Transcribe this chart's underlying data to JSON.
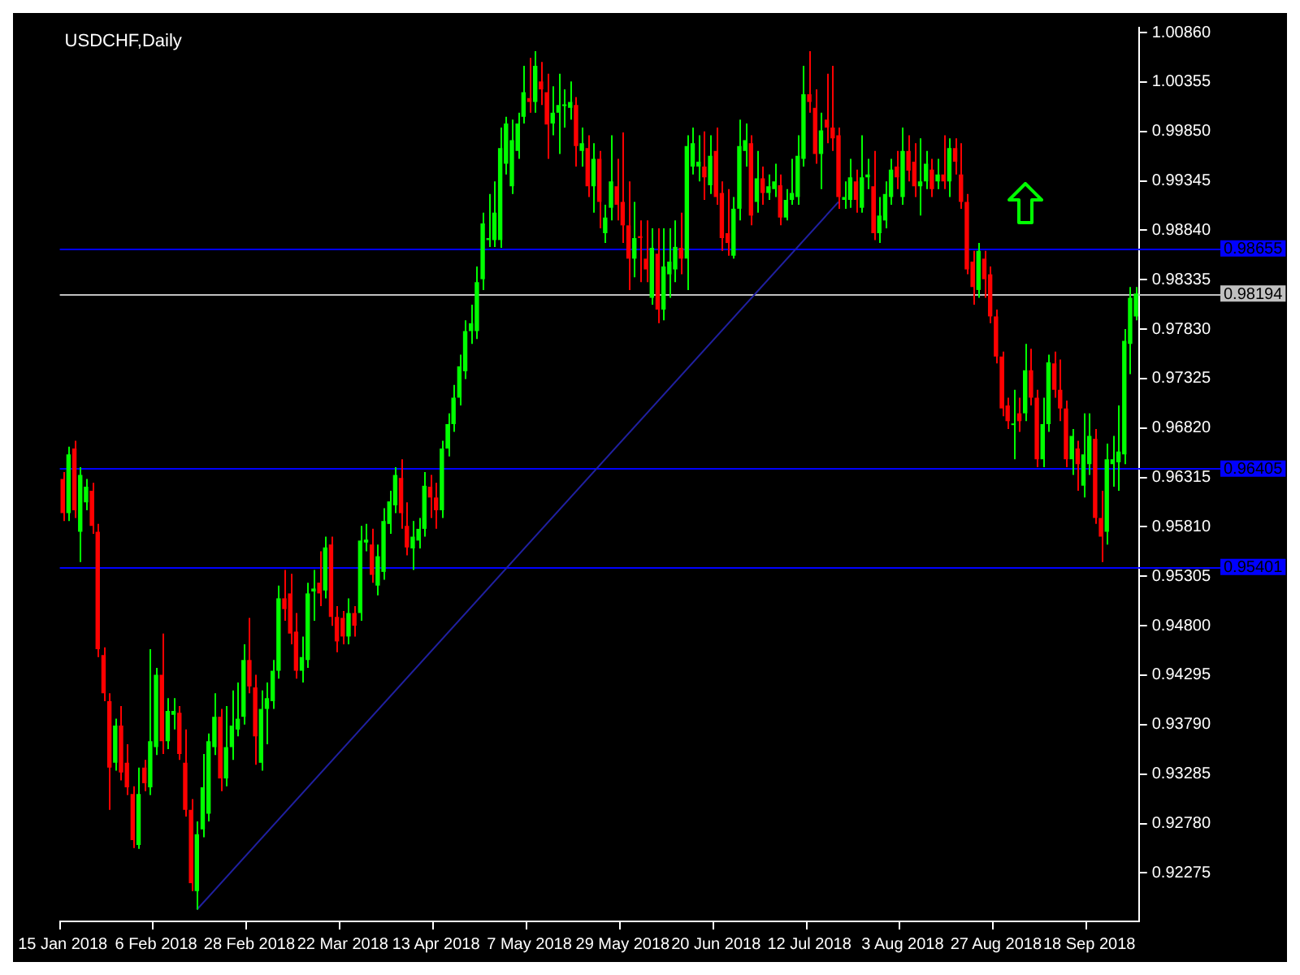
{
  "chart_data": {
    "type": "candlestick",
    "title": "USDCHF,Daily",
    "categories": [
      "15 Jan 2018",
      null,
      null,
      null,
      null,
      null,
      null,
      null,
      null,
      null,
      null,
      null,
      null,
      null,
      null,
      null,
      "6 Feb 2018",
      null,
      null,
      null,
      null,
      null,
      null,
      null,
      null,
      null,
      null,
      null,
      null,
      null,
      null,
      null,
      "28 Feb 2018",
      null,
      null,
      null,
      null,
      null,
      null,
      null,
      null,
      null,
      null,
      null,
      null,
      null,
      null,
      null,
      "22 Mar 2018",
      null,
      null,
      null,
      null,
      null,
      null,
      null,
      null,
      null,
      null,
      null,
      null,
      null,
      null,
      null,
      "13 Apr 2018",
      null,
      null,
      null,
      null,
      null,
      null,
      null,
      null,
      null,
      null,
      null,
      null,
      null,
      null,
      null,
      "7 May 2018",
      null,
      null,
      null,
      null,
      null,
      null,
      null,
      null,
      null,
      null,
      null,
      null,
      null,
      null,
      null,
      "29 May 2018",
      null,
      null,
      null,
      null,
      null,
      null,
      null,
      null,
      null,
      null,
      null,
      null,
      null,
      null,
      null,
      "20 Jun 2018",
      null,
      null,
      null,
      null,
      null,
      null,
      null,
      null,
      null,
      null,
      null,
      null,
      null,
      null,
      null,
      "12 Jul 2018",
      null,
      null,
      null,
      null,
      null,
      null,
      null,
      null,
      null,
      null,
      null,
      null,
      null,
      null,
      null,
      "3 Aug 2018",
      null,
      null,
      null,
      null,
      null,
      null,
      null,
      null,
      null,
      null,
      null,
      null,
      null,
      null,
      null,
      "27 Aug 2018",
      null,
      null,
      null,
      null,
      null,
      null,
      null,
      null,
      null,
      null,
      null,
      null,
      null,
      null,
      null,
      "18 Sep 2018",
      null,
      null,
      null,
      null,
      null,
      null,
      null,
      null
    ],
    "ohlc": [
      [
        0.963,
        0.9637,
        0.9587,
        0.9595
      ],
      [
        0.9595,
        0.9663,
        0.9587,
        0.9655
      ],
      [
        0.9661,
        0.9669,
        0.959,
        0.9598
      ],
      [
        0.9576,
        0.9642,
        0.9545,
        0.9634
      ],
      [
        0.9606,
        0.963,
        0.9598,
        0.9622
      ],
      [
        0.9618,
        0.9626,
        0.9574,
        0.9582
      ],
      [
        0.9576,
        0.9584,
        0.9448,
        0.9456
      ],
      [
        0.945,
        0.9458,
        0.9403,
        0.9411
      ],
      [
        0.9403,
        0.9411,
        0.9292,
        0.9335
      ],
      [
        0.934,
        0.9385,
        0.9332,
        0.9378
      ],
      [
        0.9378,
        0.9398,
        0.9322,
        0.933
      ],
      [
        0.934,
        0.9359,
        0.9307,
        0.9315
      ],
      [
        0.9308,
        0.9316,
        0.9253,
        0.9261
      ],
      [
        0.9256,
        0.9335,
        0.9252,
        0.9308
      ],
      [
        0.9335,
        0.9343,
        0.9311,
        0.9319
      ],
      [
        0.9315,
        0.9456,
        0.9307,
        0.9362
      ],
      [
        0.9356,
        0.9437,
        0.9348,
        0.943
      ],
      [
        0.943,
        0.9472,
        0.9349,
        0.9362
      ],
      [
        0.9362,
        0.9406,
        0.9354,
        0.9393
      ],
      [
        0.9389,
        0.9406,
        0.9374,
        0.9393
      ],
      [
        0.9391,
        0.9398,
        0.9343,
        0.9349
      ],
      [
        0.934,
        0.9374,
        0.9285,
        0.9292
      ],
      [
        0.9292,
        0.9303,
        0.9209,
        0.9217
      ],
      [
        0.9209,
        0.928,
        0.919,
        0.9267
      ],
      [
        0.9272,
        0.9349,
        0.9264,
        0.9315
      ],
      [
        0.9288,
        0.937,
        0.928,
        0.9362
      ],
      [
        0.9356,
        0.9411,
        0.9348,
        0.9387
      ],
      [
        0.9387,
        0.9395,
        0.9311,
        0.9324
      ],
      [
        0.9324,
        0.9398,
        0.9316,
        0.9356
      ],
      [
        0.9356,
        0.9414,
        0.9343,
        0.9378
      ],
      [
        0.9374,
        0.9422,
        0.9367,
        0.9385
      ],
      [
        0.9387,
        0.9461,
        0.9379,
        0.9445
      ],
      [
        0.9445,
        0.9488,
        0.9411,
        0.9418
      ],
      [
        0.9417,
        0.943,
        0.9338,
        0.9367
      ],
      [
        0.934,
        0.9414,
        0.9332,
        0.9395
      ],
      [
        0.9395,
        0.9422,
        0.9359,
        0.9406
      ],
      [
        0.9403,
        0.9445,
        0.9395,
        0.9434
      ],
      [
        0.9434,
        0.9521,
        0.9426,
        0.9508
      ],
      [
        0.9508,
        0.9537,
        0.9485,
        0.9497
      ],
      [
        0.9513,
        0.9533,
        0.9461,
        0.9472
      ],
      [
        0.9474,
        0.9493,
        0.9426,
        0.9434
      ],
      [
        0.9434,
        0.9469,
        0.9422,
        0.9448
      ],
      [
        0.9445,
        0.9524,
        0.9437,
        0.9513
      ],
      [
        0.9515,
        0.9537,
        0.9485,
        0.9518
      ],
      [
        0.9524,
        0.9556,
        0.95,
        0.9513
      ],
      [
        0.9516,
        0.9571,
        0.9508,
        0.956
      ],
      [
        0.9563,
        0.9571,
        0.948,
        0.9489
      ],
      [
        0.9489,
        0.95,
        0.9453,
        0.9464
      ],
      [
        0.9488,
        0.9495,
        0.9461,
        0.9469
      ],
      [
        0.9469,
        0.9508,
        0.9461,
        0.9493
      ],
      [
        0.9493,
        0.95,
        0.9469,
        0.948
      ],
      [
        0.9493,
        0.9582,
        0.9485,
        0.9567
      ],
      [
        0.9565,
        0.9584,
        0.9556,
        0.9568
      ],
      [
        0.9563,
        0.9579,
        0.9524,
        0.9532
      ],
      [
        0.9521,
        0.9563,
        0.9511,
        0.9551
      ],
      [
        0.9535,
        0.96,
        0.9527,
        0.9587
      ],
      [
        0.9584,
        0.9618,
        0.9574,
        0.9607
      ],
      [
        0.9603,
        0.9642,
        0.9595,
        0.9634
      ],
      [
        0.9631,
        0.965,
        0.9579,
        0.9595
      ],
      [
        0.9582,
        0.9606,
        0.9552,
        0.956
      ],
      [
        0.9559,
        0.9587,
        0.9537,
        0.9571
      ],
      [
        0.9567,
        0.959,
        0.9559,
        0.9579
      ],
      [
        0.9579,
        0.9637,
        0.9571,
        0.9623
      ],
      [
        0.9622,
        0.9634,
        0.959,
        0.9611
      ],
      [
        0.9611,
        0.9626,
        0.9579,
        0.9598
      ],
      [
        0.9598,
        0.9669,
        0.959,
        0.9661
      ],
      [
        0.9661,
        0.9697,
        0.9653,
        0.9686
      ],
      [
        0.9686,
        0.9726,
        0.9678,
        0.9713
      ],
      [
        0.9713,
        0.9757,
        0.9705,
        0.9745
      ],
      [
        0.974,
        0.9792,
        0.9732,
        0.9781
      ],
      [
        0.9781,
        0.9808,
        0.9768,
        0.9789
      ],
      [
        0.9781,
        0.9847,
        0.9773,
        0.9831
      ],
      [
        0.9834,
        0.9902,
        0.9823,
        0.9891
      ],
      [
        0.9874,
        0.9921,
        0.9867,
        0.9876
      ],
      [
        0.9874,
        0.9934,
        0.9867,
        0.9902
      ],
      [
        0.9874,
        0.9989,
        0.9866,
        0.9968
      ],
      [
        0.9952,
        1.0,
        0.9941,
        0.9993
      ],
      [
        0.9929,
        0.9997,
        0.9921,
        0.9976
      ],
      [
        0.9965,
        1.0004,
        0.9957,
        0.9993
      ],
      [
        1.0,
        1.0052,
        0.9993,
        1.0025
      ],
      [
        1.0019,
        1.006,
        1.0004,
        1.0015
      ],
      [
        1.0015,
        1.0067,
        1.0004,
        1.0052
      ],
      [
        1.0036,
        1.0056,
        1.0012,
        1.0028
      ],
      [
        1.0025,
        1.0044,
        0.9957,
        0.9992
      ],
      [
        0.9993,
        1.0031,
        0.9981,
        1.0004
      ],
      [
        1.0004,
        1.0044,
        0.9962,
        1.0012
      ],
      [
        1.0011,
        1.0028,
        0.9989,
        1.0012
      ],
      [
        1.0009,
        1.0036,
        0.9997,
        1.0015
      ],
      [
        1.0012,
        1.002,
        0.9949,
        0.997
      ],
      [
        0.9965,
        0.9989,
        0.9949,
        0.9973
      ],
      [
        0.9968,
        0.9981,
        0.9918,
        0.9929
      ],
      [
        0.9929,
        0.9973,
        0.9902,
        0.9957
      ],
      [
        0.9957,
        0.9965,
        0.9886,
        0.9913
      ],
      [
        0.9881,
        0.991,
        0.9871,
        0.9897
      ],
      [
        0.9907,
        0.9981,
        0.9894,
        0.9934
      ],
      [
        0.9929,
        0.9957,
        0.9894,
        0.991
      ],
      [
        0.9913,
        0.9984,
        0.9871,
        0.9889
      ],
      [
        0.9889,
        0.9934,
        0.9823,
        0.9855
      ],
      [
        0.9855,
        0.9913,
        0.9836,
        0.9876
      ],
      [
        0.9878,
        0.9894,
        0.9831,
        0.9876
      ],
      [
        0.9855,
        0.9894,
        0.9831,
        0.9844
      ],
      [
        0.9815,
        0.9886,
        0.9808,
        0.9866
      ],
      [
        0.986,
        0.9886,
        0.9789,
        0.9803
      ],
      [
        0.9803,
        0.9886,
        0.9792,
        0.9847
      ],
      [
        0.9839,
        0.9886,
        0.9815,
        0.9852
      ],
      [
        0.9844,
        0.9894,
        0.9831,
        0.9867
      ],
      [
        0.9866,
        0.9902,
        0.9839,
        0.9855
      ],
      [
        0.9855,
        0.9981,
        0.9823,
        0.997
      ],
      [
        0.9949,
        0.9989,
        0.9941,
        0.9973
      ],
      [
        0.9949,
        0.9981,
        0.9934,
        0.9954
      ],
      [
        0.9949,
        0.9985,
        0.9915,
        0.9938
      ],
      [
        0.993,
        0.9981,
        0.9921,
        0.996
      ],
      [
        0.9965,
        0.9989,
        0.991,
        0.9918
      ],
      [
        0.9922,
        0.9934,
        0.9863,
        0.9876
      ],
      [
        0.9881,
        0.9926,
        0.9858,
        0.9871
      ],
      [
        0.9858,
        0.9918,
        0.9855,
        0.9906
      ],
      [
        0.9906,
        0.9997,
        0.9894,
        0.997
      ],
      [
        0.9965,
        0.9993,
        0.9949,
        0.9976
      ],
      [
        0.9973,
        0.9981,
        0.9889,
        0.9899
      ],
      [
        0.9913,
        0.9965,
        0.9902,
        0.9937
      ],
      [
        0.9937,
        0.9949,
        0.991,
        0.9922
      ],
      [
        0.9922,
        0.9941,
        0.9915,
        0.9929
      ],
      [
        0.9926,
        0.9952,
        0.9918,
        0.9934
      ],
      [
        0.993,
        0.9941,
        0.9889,
        0.9897
      ],
      [
        0.9897,
        0.9926,
        0.9894,
        0.9915
      ],
      [
        0.9915,
        0.9957,
        0.991,
        0.9922
      ],
      [
        0.9918,
        0.9981,
        0.991,
        0.996
      ],
      [
        0.9957,
        1.0052,
        0.9949,
        1.0023
      ],
      [
        1.0023,
        1.0067,
        1.0004,
        1.0015
      ],
      [
        1.0009,
        1.0028,
        0.9952,
        0.9962
      ],
      [
        0.9962,
        1.0004,
        0.9926,
        0.9986
      ],
      [
        0.9997,
        1.0044,
        0.9973,
        0.9989
      ],
      [
        0.9989,
        1.0052,
        0.9965,
        0.9978
      ],
      [
        0.9981,
        0.9989,
        0.9906,
        0.9918
      ],
      [
        0.9915,
        0.9934,
        0.9906,
        0.9918
      ],
      [
        0.9915,
        0.9957,
        0.9907,
        0.9938
      ],
      [
        0.9934,
        0.9946,
        0.9902,
        0.9915
      ],
      [
        0.9907,
        0.9981,
        0.9902,
        0.9938
      ],
      [
        0.9938,
        0.9957,
        0.9926,
        0.9941
      ],
      [
        0.9929,
        0.9965,
        0.9874,
        0.9881
      ],
      [
        0.9881,
        0.9918,
        0.9871,
        0.9899
      ],
      [
        0.9894,
        0.9934,
        0.9886,
        0.9921
      ],
      [
        0.9918,
        0.9957,
        0.991,
        0.9946
      ],
      [
        0.9949,
        0.9965,
        0.9926,
        0.9938
      ],
      [
        0.9918,
        0.9989,
        0.991,
        0.9965
      ],
      [
        0.9965,
        0.9981,
        0.9934,
        0.9945
      ],
      [
        0.9954,
        0.9973,
        0.9918,
        0.9929
      ],
      [
        0.9929,
        0.9978,
        0.9899,
        0.9934
      ],
      [
        0.9934,
        0.9965,
        0.9926,
        0.9952
      ],
      [
        0.9946,
        0.9957,
        0.9918,
        0.9926
      ],
      [
        0.9934,
        0.9957,
        0.9926,
        0.9941
      ],
      [
        0.9941,
        0.9981,
        0.9926,
        0.9934
      ],
      [
        0.9934,
        0.9978,
        0.9918,
        0.9968
      ],
      [
        0.9968,
        0.9978,
        0.9941,
        0.9954
      ],
      [
        0.9941,
        0.9973,
        0.9906,
        0.9913
      ],
      [
        0.9913,
        0.9921,
        0.9839,
        0.9844
      ],
      [
        0.9852,
        0.9863,
        0.9808,
        0.9826
      ],
      [
        0.9823,
        0.9871,
        0.9815,
        0.9863
      ],
      [
        0.9855,
        0.9863,
        0.9815,
        0.9834
      ],
      [
        0.9839,
        0.9847,
        0.9789,
        0.9796
      ],
      [
        0.9796,
        0.9803,
        0.9748,
        0.9755
      ],
      [
        0.9755,
        0.976,
        0.9694,
        0.9702
      ],
      [
        0.9705,
        0.9713,
        0.9681,
        0.9689
      ],
      [
        0.9685,
        0.9721,
        0.965,
        0.9686
      ],
      [
        0.9697,
        0.9713,
        0.9678,
        0.9689
      ],
      [
        0.9697,
        0.9768,
        0.9689,
        0.9741
      ],
      [
        0.9741,
        0.9763,
        0.9705,
        0.9713
      ],
      [
        0.9713,
        0.9721,
        0.9642,
        0.965
      ],
      [
        0.965,
        0.9713,
        0.9642,
        0.9686
      ],
      [
        0.9686,
        0.9757,
        0.9678,
        0.9749
      ],
      [
        0.9748,
        0.976,
        0.9713,
        0.9721
      ],
      [
        0.9721,
        0.9752,
        0.9689,
        0.9702
      ],
      [
        0.9702,
        0.971,
        0.9642,
        0.965
      ],
      [
        0.965,
        0.9681,
        0.9634,
        0.9674
      ],
      [
        0.9661,
        0.9669,
        0.9618,
        0.9645
      ],
      [
        0.9623,
        0.9697,
        0.9611,
        0.9655
      ],
      [
        0.9645,
        0.9697,
        0.9634,
        0.9674
      ],
      [
        0.9671,
        0.9681,
        0.9584,
        0.959
      ],
      [
        0.959,
        0.9618,
        0.9545,
        0.9571
      ],
      [
        0.9576,
        0.9666,
        0.9563,
        0.965
      ],
      [
        0.9645,
        0.9674,
        0.9622,
        0.965
      ],
      [
        0.9647,
        0.9705,
        0.9618,
        0.9658
      ],
      [
        0.9655,
        0.9783,
        0.9645,
        0.9771
      ],
      [
        0.9768,
        0.9826,
        0.9737,
        0.9815
      ],
      [
        0.9796,
        0.9826,
        0.9792,
        0.98194
      ]
    ],
    "colors": [
      "#ff0000",
      "#00ff00",
      "#ff0000",
      "#00ff00",
      "#00ff00",
      "#ff0000",
      "#ff0000",
      "#ff0000",
      "#ff0000",
      "#00ff00",
      "#ff0000",
      "#ff0000",
      "#ff0000",
      "#00ff00",
      "#ff0000",
      "#00ff00",
      "#00ff00",
      "#ff0000",
      "#00ff00",
      "#00ff00",
      "#ff0000",
      "#ff0000",
      "#ff0000",
      "#00ff00",
      "#00ff00",
      "#00ff00",
      "#00ff00",
      "#ff0000",
      "#00ff00",
      "#00ff00",
      "#00ff00",
      "#00ff00",
      "#ff0000",
      "#ff0000",
      "#00ff00",
      "#00ff00",
      "#00ff00",
      "#00ff00",
      "#ff0000",
      "#ff0000",
      "#ff0000",
      "#00ff00",
      "#00ff00",
      "#00ff00",
      "#ff0000",
      "#00ff00",
      "#ff0000",
      "#ff0000",
      "#ff0000",
      "#00ff00",
      "#ff0000",
      "#00ff00",
      "#00ff00",
      "#ff0000",
      "#00ff00",
      "#00ff00",
      "#00ff00",
      "#00ff00",
      "#ff0000",
      "#ff0000",
      "#00ff00",
      "#00ff00",
      "#00ff00",
      "#ff0000",
      "#ff0000",
      "#00ff00",
      "#00ff00",
      "#00ff00",
      "#00ff00",
      "#00ff00",
      "#00ff00",
      "#00ff00",
      "#00ff00",
      "#00ff00",
      "#00ff00",
      "#00ff00",
      "#00ff00",
      "#00ff00",
      "#00ff00",
      "#00ff00",
      "#ff0000",
      "#00ff00",
      "#ff0000",
      "#ff0000",
      "#00ff00",
      "#00ff00",
      "#00ff00",
      "#00ff00",
      "#ff0000",
      "#00ff00",
      "#ff0000",
      "#00ff00",
      "#ff0000",
      "#00ff00",
      "#00ff00",
      "#ff0000",
      "#ff0000",
      "#ff0000",
      "#00ff00",
      "#ff0000",
      "#ff0000",
      "#00ff00",
      "#ff0000",
      "#00ff00",
      "#00ff00",
      "#00ff00",
      "#ff0000",
      "#00ff00",
      "#00ff00",
      "#00ff00",
      "#ff0000",
      "#00ff00",
      "#ff0000",
      "#ff0000",
      "#ff0000",
      "#00ff00",
      "#00ff00",
      "#00ff00",
      "#ff0000",
      "#00ff00",
      "#ff0000",
      "#00ff00",
      "#00ff00",
      "#ff0000",
      "#00ff00",
      "#00ff00",
      "#00ff00",
      "#00ff00",
      "#ff0000",
      "#ff0000",
      "#00ff00",
      "#ff0000",
      "#ff0000",
      "#ff0000",
      "#00ff00",
      "#00ff00",
      "#ff0000",
      "#00ff00",
      "#00ff00",
      "#ff0000",
      "#00ff00",
      "#00ff00",
      "#00ff00",
      "#ff0000",
      "#00ff00",
      "#ff0000",
      "#ff0000",
      "#00ff00",
      "#00ff00",
      "#ff0000",
      "#00ff00",
      "#ff0000",
      "#00ff00",
      "#ff0000",
      "#ff0000",
      "#ff0000",
      "#ff0000",
      "#00ff00",
      "#ff0000",
      "#ff0000",
      "#ff0000",
      "#ff0000",
      "#ff0000",
      "#00ff00",
      "#ff0000",
      "#00ff00",
      "#ff0000",
      "#ff0000",
      "#00ff00",
      "#00ff00",
      "#ff0000",
      "#ff0000",
      "#ff0000",
      "#00ff00",
      "#ff0000",
      "#00ff00",
      "#00ff00",
      "#ff0000",
      "#ff0000",
      "#00ff00",
      "#00ff00",
      "#00ff00",
      "#00ff00",
      "#00ff00",
      "#00ff00"
    ],
    "series": [
      {
        "type": "line",
        "color": "#2020a0",
        "line_style": "solid",
        "values": [
          null,
          null,
          null,
          null,
          null,
          null,
          null,
          null,
          null,
          null,
          null,
          null,
          null,
          null,
          null,
          null,
          null,
          null,
          null,
          null,
          null,
          null,
          null,
          0.919,
          null,
          null,
          null,
          null,
          null,
          null,
          null,
          null,
          null,
          null,
          null,
          null,
          null,
          null,
          null,
          null,
          null,
          null,
          null,
          null,
          null,
          null,
          null,
          null,
          null,
          null,
          null,
          null,
          null,
          null,
          null,
          null,
          null,
          null,
          null,
          null,
          null,
          null,
          null,
          null,
          null,
          null,
          null,
          null,
          null,
          null,
          null,
          null,
          null,
          null,
          null,
          null,
          null,
          null,
          null,
          null,
          null,
          null,
          null,
          null,
          null,
          null,
          null,
          null,
          null,
          null,
          null,
          null,
          null,
          null,
          null,
          null,
          null,
          null,
          null,
          null,
          null,
          null,
          null,
          null,
          null,
          null,
          null,
          null,
          null,
          null,
          null,
          null,
          null,
          null,
          null,
          null,
          null,
          null,
          null,
          null,
          null,
          null,
          null,
          null,
          null,
          null,
          null,
          null,
          null,
          null,
          null,
          null,
          null,
          0.9913,
          null,
          null,
          null,
          null,
          null,
          null,
          null,
          null,
          null,
          null,
          null,
          null,
          null,
          null,
          null,
          null,
          null,
          null,
          null,
          null,
          null,
          null,
          null,
          null,
          null,
          null,
          null,
          null,
          null,
          null,
          null,
          null,
          null,
          null,
          null,
          null,
          null,
          null,
          null,
          null,
          null,
          null,
          null,
          null,
          null,
          null,
          null,
          null,
          null,
          null,
          null
        ]
      }
    ],
    "ylim": [
      0.9178,
      1.0091
    ],
    "yticks": [
      {
        "value": 0.92275,
        "label": "0.92275"
      },
      {
        "value": 0.9278,
        "label": "0.92780"
      },
      {
        "value": 0.93285,
        "label": "0.93285"
      },
      {
        "value": 0.9379,
        "label": "0.93790"
      },
      {
        "value": 0.94295,
        "label": "0.94295"
      },
      {
        "value": 0.948,
        "label": "0.94800"
      },
      {
        "value": 0.95305,
        "label": "0.95305"
      },
      {
        "value": 0.9581,
        "label": "0.95810"
      },
      {
        "value": 0.96315,
        "label": "0.96315"
      },
      {
        "value": 0.9682,
        "label": "0.96820"
      },
      {
        "value": 0.97325,
        "label": "0.97325"
      },
      {
        "value": 0.9783,
        "label": "0.97830"
      },
      {
        "value": 0.98335,
        "label": "0.98335"
      },
      {
        "value": 0.9884,
        "label": "0.98840"
      },
      {
        "value": 0.99345,
        "label": "0.99345"
      },
      {
        "value": 0.9985,
        "label": "0.99850"
      },
      {
        "value": 1.00355,
        "label": "1.00355"
      },
      {
        "value": 1.0086,
        "label": "1.00860"
      }
    ],
    "ref_lines": [
      {
        "axis": "y",
        "value": 0.98655,
        "label": "0.98655",
        "color": "#0000ff"
      },
      {
        "axis": "y",
        "value": 0.98194,
        "label": "0.98194",
        "color": "#c0c0c0"
      },
      {
        "axis": "y",
        "value": 0.96405,
        "label": "0.96405",
        "color": "#0000ff"
      },
      {
        "axis": "y",
        "value": 0.95401,
        "label": "0.95401",
        "color": "#0000ff"
      }
    ],
    "legend": false
  }
}
